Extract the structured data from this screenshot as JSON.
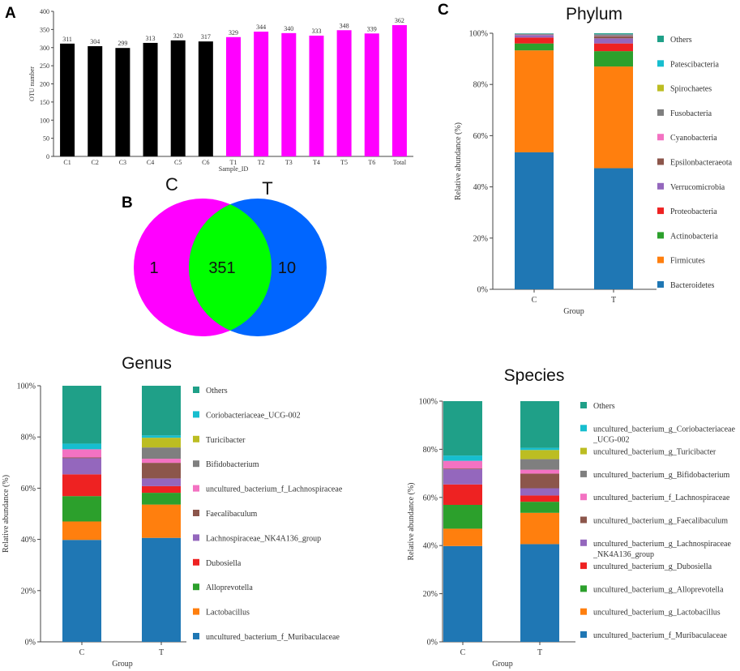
{
  "panels": {
    "a": "A",
    "b": "B",
    "c": "C"
  },
  "chart_data": [
    {
      "id": "A",
      "type": "bar",
      "categories": [
        "C1",
        "C2",
        "C3",
        "C4",
        "C5",
        "C6",
        "T1",
        "T2",
        "T3",
        "T4",
        "T5",
        "T6",
        "Total"
      ],
      "values": [
        311,
        304,
        299,
        313,
        320,
        317,
        329,
        344,
        340,
        333,
        348,
        339,
        362
      ],
      "data_labels": [
        "311",
        "304",
        "299",
        "313",
        "320",
        "317",
        "329",
        "344",
        "340",
        "333",
        "348",
        "339",
        "362"
      ],
      "colors": [
        "#000000",
        "#000000",
        "#000000",
        "#000000",
        "#000000",
        "#000000",
        "#ff00ff",
        "#ff00ff",
        "#ff00ff",
        "#ff00ff",
        "#ff00ff",
        "#ff00ff",
        "#ff00ff"
      ],
      "xlabel": "Sample_ID",
      "ylabel": "OTU number",
      "ylim": [
        0,
        400
      ],
      "yticks": [
        "0",
        "50",
        "100",
        "150",
        "200",
        "250",
        "300",
        "350",
        "400"
      ]
    },
    {
      "id": "B",
      "type": "venn",
      "sets": [
        {
          "name": "C",
          "unique": "1",
          "color": "#ff00ff"
        },
        {
          "name": "T",
          "unique": "10",
          "color": "#0066ff"
        }
      ],
      "intersection": "351",
      "intersection_color": "#00ff00"
    },
    {
      "id": "Phylum",
      "type": "stacked-bar",
      "title": "Phylum",
      "xlabel": "Group",
      "ylabel": "Relative abundance (%)",
      "categories": [
        "C",
        "T"
      ],
      "yticks": [
        "0%",
        "20%",
        "40%",
        "60%",
        "80%",
        "100%"
      ],
      "series": [
        {
          "name": "Bacteroidetes",
          "color": "#1f77b4",
          "values": [
            53.5,
            47.3
          ]
        },
        {
          "name": "Firmicutes",
          "color": "#ff7f0e",
          "values": [
            39.8,
            39.7
          ]
        },
        {
          "name": "Actinobacteria",
          "color": "#2ca02c",
          "values": [
            2.7,
            6.0
          ]
        },
        {
          "name": "Proteobacteria",
          "color": "#ee2222",
          "values": [
            2.3,
            3.0
          ]
        },
        {
          "name": "Verrucomicrobia",
          "color": "#9467bd",
          "values": [
            0.9,
            2.0
          ]
        },
        {
          "name": "Epsilonbacteraeota",
          "color": "#8c564b",
          "values": [
            0.1,
            0.8
          ]
        },
        {
          "name": "Cyanobacteria",
          "color": "#f372c2",
          "values": [
            0.1,
            0.1
          ]
        },
        {
          "name": "Fusobacteria",
          "color": "#7f7f7f",
          "values": [
            0.4,
            0.7
          ]
        },
        {
          "name": "Spirochaetes",
          "color": "#bcbd22",
          "values": [
            0.0,
            0.0
          ]
        },
        {
          "name": "Patescibacteria",
          "color": "#17becf",
          "values": [
            0.1,
            0.1
          ]
        },
        {
          "name": "Others",
          "color": "#1fa088",
          "values": [
            0.1,
            0.3
          ]
        }
      ]
    },
    {
      "id": "Genus",
      "type": "stacked-bar",
      "title": "Genus",
      "xlabel": "Group",
      "ylabel": "Relative abundance (%)",
      "categories": [
        "C",
        "T"
      ],
      "yticks": [
        "0%",
        "20%",
        "40%",
        "60%",
        "80%",
        "100%"
      ],
      "series": [
        {
          "name": "uncultured_bacterium_f_Muribaculaceae",
          "color": "#1f77b4",
          "values": [
            39.8,
            40.6
          ]
        },
        {
          "name": "Lactobacillus",
          "color": "#ff7f0e",
          "values": [
            7.2,
            13.0
          ]
        },
        {
          "name": "Alloprevotella",
          "color": "#2ca02c",
          "values": [
            9.9,
            4.6
          ]
        },
        {
          "name": "Dubosiella",
          "color": "#ee2222",
          "values": [
            8.5,
            2.6
          ]
        },
        {
          "name": "Lachnospiraceae_NK4A136_group",
          "color": "#9467bd",
          "values": [
            6.3,
            3.0
          ]
        },
        {
          "name": "Faecalibaculum",
          "color": "#8c564b",
          "values": [
            0.3,
            6.1
          ]
        },
        {
          "name": "uncultured_bacterium_f_Lachnospiraceae",
          "color": "#f372c2",
          "values": [
            3.2,
            1.6
          ]
        },
        {
          "name": "Bifidobacterium",
          "color": "#7f7f7f",
          "values": [
            0.0,
            4.4
          ]
        },
        {
          "name": "Turicibacter",
          "color": "#bcbd22",
          "values": [
            0.0,
            3.8
          ]
        },
        {
          "name": "Coriobacteriaceae_UCG-002",
          "color": "#17becf",
          "values": [
            2.2,
            0.9
          ]
        },
        {
          "name": "Others",
          "color": "#1fa088",
          "values": [
            22.6,
            19.4
          ]
        }
      ]
    },
    {
      "id": "Species",
      "type": "stacked-bar",
      "title": "Species",
      "xlabel": "Group",
      "ylabel": "Relative abundance (%)",
      "categories": [
        "C",
        "T"
      ],
      "yticks": [
        "0%",
        "20%",
        "40%",
        "60%",
        "80%",
        "100%"
      ],
      "series": [
        {
          "name": "uncultured_bacterium_f_Muribaculaceae",
          "lines": [
            "uncultured_bacterium_f_Muribaculaceae"
          ],
          "color": "#1f77b4",
          "values": [
            39.8,
            40.6
          ]
        },
        {
          "name": "uncultured_bacterium_g_Lactobacillus",
          "lines": [
            "uncultured_bacterium_g_Lactobacillus"
          ],
          "color": "#ff7f0e",
          "values": [
            7.2,
            13.0
          ]
        },
        {
          "name": "uncultured_bacterium_g_Alloprevotella",
          "lines": [
            "uncultured_bacterium_g_Alloprevotella"
          ],
          "color": "#2ca02c",
          "values": [
            9.9,
            4.6
          ]
        },
        {
          "name": "uncultured_bacterium_g_Dubosiella",
          "lines": [
            "uncultured_bacterium_g_Dubosiella"
          ],
          "color": "#ee2222",
          "values": [
            8.5,
            2.6
          ]
        },
        {
          "name": "uncultured_bacterium_g_Lachnospiraceae_NK4A136_group",
          "lines": [
            "uncultured_bacterium_g_Lachnospiraceae",
            "_NK4A136_group"
          ],
          "color": "#9467bd",
          "values": [
            6.3,
            3.0
          ]
        },
        {
          "name": "uncultured_bacterium_g_Faecalibaculum",
          "lines": [
            "uncultured_bacterium_g_Faecalibaculum"
          ],
          "color": "#8c564b",
          "values": [
            0.3,
            6.1
          ]
        },
        {
          "name": "uncultured_bacterium_f_Lachnospiraceae",
          "lines": [
            "uncultured_bacterium_f_Lachnospiraceae"
          ],
          "color": "#f372c2",
          "values": [
            3.2,
            1.6
          ]
        },
        {
          "name": "uncultured_bacterium_g_Bifidobacterium",
          "lines": [
            "uncultured_bacterium_g_Bifidobacterium"
          ],
          "color": "#7f7f7f",
          "values": [
            0.0,
            4.4
          ]
        },
        {
          "name": "uncultured_bacterium_g_Turicibacter",
          "lines": [
            "uncultured_bacterium_g_Turicibacter"
          ],
          "color": "#bcbd22",
          "values": [
            0.0,
            3.8
          ]
        },
        {
          "name": "uncultured_bacterium_g_Coriobacteriaceae_UCG-002",
          "lines": [
            "uncultured_bacterium_g_Coriobacteriaceae",
            "_UCG-002"
          ],
          "color": "#17becf",
          "values": [
            2.2,
            0.9
          ]
        },
        {
          "name": "Others",
          "lines": [
            "Others"
          ],
          "color": "#1fa088",
          "values": [
            22.6,
            19.4
          ]
        }
      ]
    }
  ]
}
